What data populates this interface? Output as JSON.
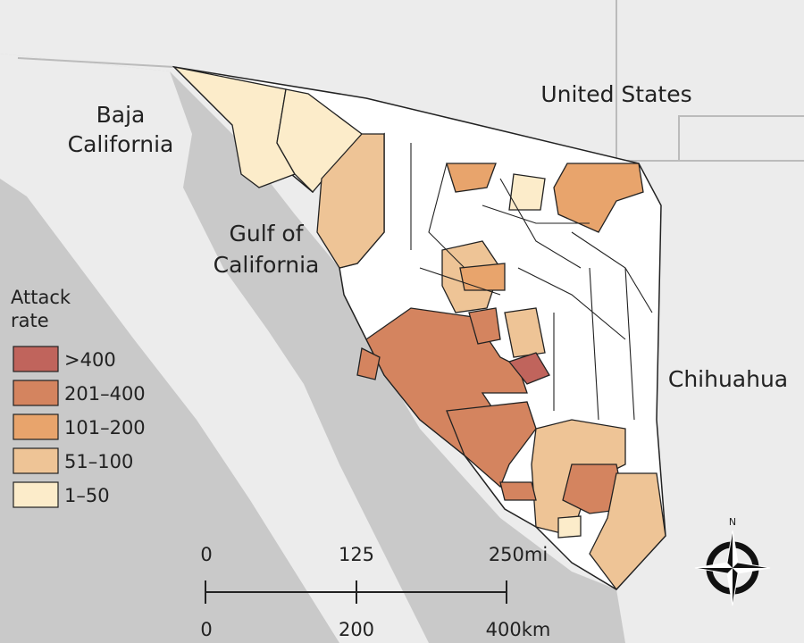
{
  "labels": {
    "united_states": "United States",
    "baja_california": [
      "Baja",
      "California"
    ],
    "gulf_of_california": [
      "Gulf of",
      "California"
    ],
    "chihuahua": "Chihuahua"
  },
  "legend": {
    "title": [
      "Attack",
      "rate"
    ],
    "items": [
      {
        "label": ">400",
        "color": "#c0645c"
      },
      {
        "label": "201–400",
        "color": "#d4845f"
      },
      {
        "label": "101–200",
        "color": "#e8a46c"
      },
      {
        "label": "51–100",
        "color": "#eec496"
      },
      {
        "label": "1–50",
        "color": "#fcecca"
      }
    ]
  },
  "scale_bar": {
    "miles": [
      "0",
      "125",
      "250mi"
    ],
    "kilometers": [
      "0",
      "200",
      "400km"
    ]
  },
  "compass": "N"
}
